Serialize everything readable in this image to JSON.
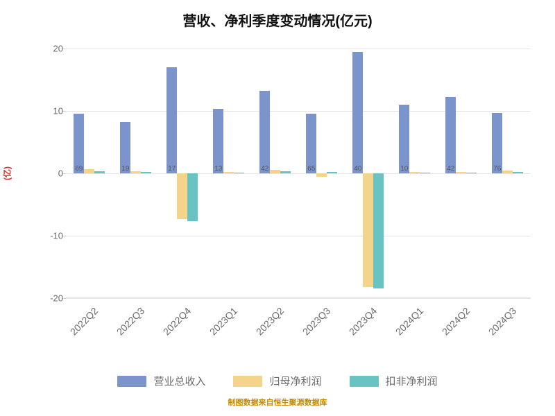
{
  "chart": {
    "type": "bar",
    "title": "营收、净利季度变动情况(亿元)",
    "title_fontsize": 20,
    "title_color": "#111111",
    "ylabel": "(亿)",
    "ylabel_color": "#d32f2f",
    "ylim": [
      -20,
      20
    ],
    "ytick_step": 10,
    "background_color": "#ffffff",
    "grid_color": "rgba(0,0,0,0.10)",
    "xtick_fontsize": 14,
    "ytick_fontsize": 13,
    "xtick_rotation": -45,
    "categories": [
      "2022Q2",
      "2022Q3",
      "2022Q4",
      "2023Q1",
      "2023Q2",
      "2023Q3",
      "2023Q4",
      "2024Q1",
      "2024Q2",
      "2024Q3"
    ],
    "series": [
      {
        "name": "营业总收入",
        "color": "#7b95cc",
        "values": [
          9.6,
          8.2,
          17.0,
          10.3,
          13.2,
          9.6,
          19.4,
          11.0,
          12.2,
          9.7
        ],
        "labels": [
          "69",
          "19",
          "17",
          "13",
          "42",
          "65",
          "40",
          "10",
          "42",
          "76"
        ]
      },
      {
        "name": "归母净利润",
        "color": "#f3d48a",
        "values": [
          0.7,
          0.35,
          -7.3,
          0.25,
          0.6,
          -0.5,
          -18.2,
          0.25,
          0.2,
          0.5
        ],
        "labels": [
          "",
          "",
          "",
          "",
          "",
          "",
          "",
          "",
          "",
          ""
        ]
      },
      {
        "name": "扣非净利润",
        "color": "#69c3c3",
        "values": [
          0.35,
          0.2,
          -7.7,
          0.15,
          0.35,
          0.2,
          -18.4,
          0.1,
          0.1,
          0.25
        ],
        "labels": [
          "",
          "",
          "",
          "",
          "",
          "",
          "",
          "",
          "",
          ""
        ]
      }
    ],
    "bar_width_ratio": 0.22,
    "group_gap_ratio": 0.08
  },
  "source_note": "制图数据来自恒生聚源数据库",
  "source_color": "#c68a00"
}
